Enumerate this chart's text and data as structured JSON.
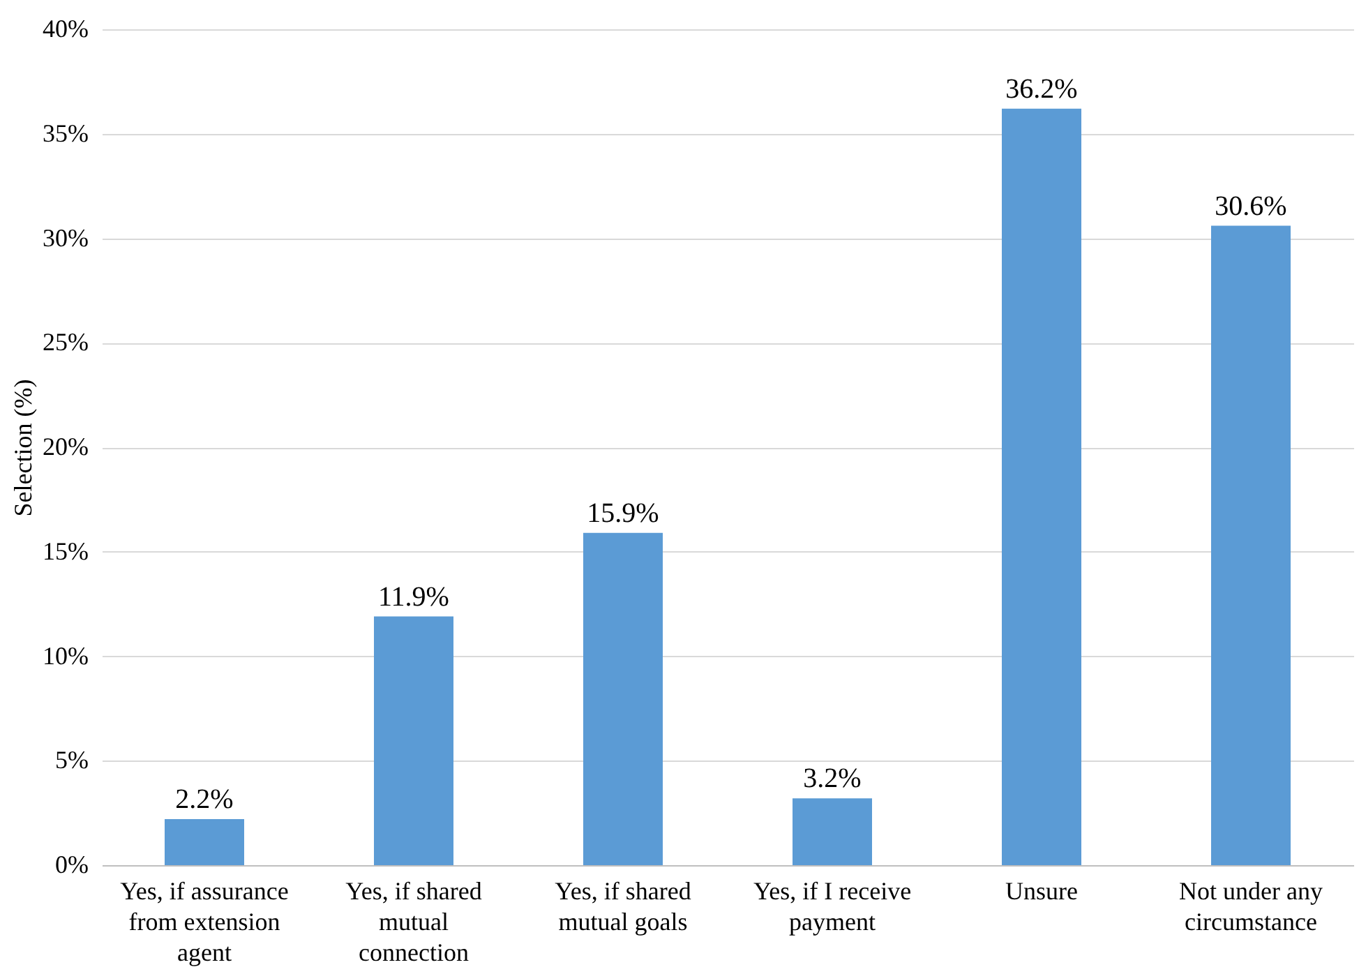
{
  "chart_data": {
    "type": "bar",
    "ylabel": "Selection (%)",
    "categories": [
      "Yes, if assurance from extension agent",
      "Yes, if shared mutual connection",
      "Yes, if shared mutual goals",
      "Yes, if I receive payment",
      "Unsure",
      "Not under any circumstance"
    ],
    "values": [
      2.2,
      11.9,
      15.9,
      3.2,
      36.2,
      30.6
    ],
    "value_labels": [
      "2.2%",
      "11.9%",
      "15.9%",
      "3.2%",
      "36.2%",
      "30.6%"
    ],
    "color": "#5b9bd5",
    "ylim": [
      0,
      40
    ],
    "yticks": [
      {
        "value": 0,
        "label": "0%"
      },
      {
        "value": 5,
        "label": "5%"
      },
      {
        "value": 10,
        "label": "10%"
      },
      {
        "value": 15,
        "label": "15%"
      },
      {
        "value": 20,
        "label": "20%"
      },
      {
        "value": 25,
        "label": "25%"
      },
      {
        "value": 30,
        "label": "30%"
      },
      {
        "value": 35,
        "label": "35%"
      },
      {
        "value": 40,
        "label": "40%"
      }
    ],
    "grid": "y"
  }
}
